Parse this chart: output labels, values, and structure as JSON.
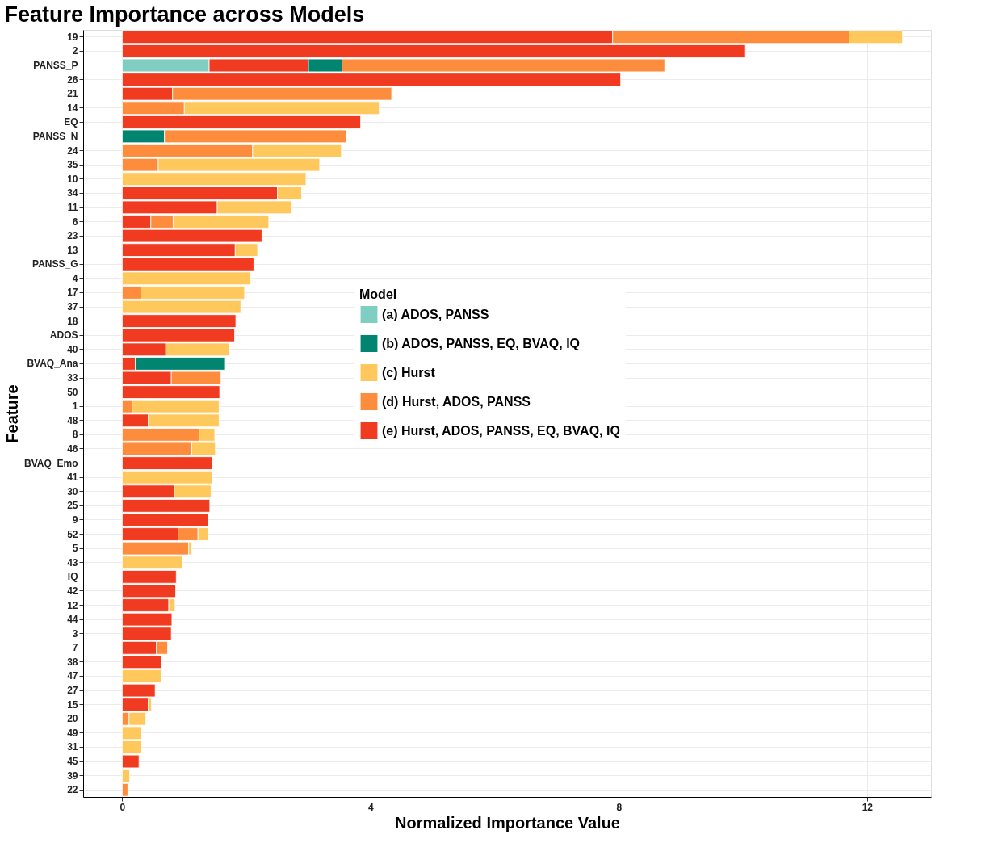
{
  "chart_data": {
    "type": "bar",
    "orientation": "horizontal",
    "stacked": true,
    "title": "Feature Importance across Models",
    "xlabel": "Normalized Importance Value",
    "ylabel": "Feature",
    "legend_title": "Model",
    "legend": "right",
    "grid": true,
    "categories": [
      "19",
      "2",
      "PANSS_P",
      "26",
      "21",
      "14",
      "EQ",
      "PANSS_N",
      "24",
      "35",
      "10",
      "34",
      "11",
      "6",
      "23",
      "13",
      "PANSS_G",
      "4",
      "17",
      "37",
      "18",
      "ADOS",
      "40",
      "BVAQ_Ana",
      "33",
      "50",
      "1",
      "48",
      "8",
      "46",
      "BVAQ_Emo",
      "41",
      "30",
      "25",
      "9",
      "52",
      "5",
      "43",
      "IQ",
      "42",
      "12",
      "44",
      "3",
      "7",
      "38",
      "47",
      "27",
      "15",
      "20",
      "49",
      "31",
      "45",
      "39",
      "22"
    ],
    "xlim": [
      -0.63,
      13.03
    ],
    "xticks": [
      0,
      4,
      8,
      12
    ],
    "series": [
      {
        "name": "(a) ADOS, PANSS",
        "color": "#80cdc1",
        "values": [
          null,
          null,
          1.4,
          null,
          null,
          null,
          null,
          null,
          null,
          null,
          null,
          null,
          null,
          null,
          null,
          null,
          null,
          null,
          null,
          null,
          null,
          null,
          null,
          null,
          null,
          null,
          null,
          null,
          null,
          null,
          null,
          null,
          null,
          null,
          null,
          null,
          null,
          null,
          null,
          null,
          null,
          null,
          null,
          null,
          null,
          null,
          null,
          null,
          null,
          null,
          null,
          null,
          null,
          null
        ]
      },
      {
        "name": "(e) Hurst, ADOS, PANSS, EQ, BVAQ, IQ",
        "color": "#f03b20",
        "values": [
          7.9,
          10.04,
          1.6,
          8.03,
          0.81,
          null,
          3.84,
          null,
          null,
          null,
          null,
          2.5,
          1.53,
          0.46,
          2.25,
          1.82,
          2.12,
          null,
          null,
          null,
          1.83,
          1.81,
          0.7,
          0.21,
          0.79,
          1.57,
          null,
          0.42,
          null,
          null,
          1.45,
          null,
          0.84,
          1.41,
          1.38,
          0.9,
          null,
          null,
          0.87,
          0.86,
          0.75,
          0.8,
          0.79,
          0.55,
          0.63,
          null,
          0.53,
          0.42,
          null,
          null,
          null,
          0.27,
          null,
          null
        ]
      },
      {
        "name": "(b) ADOS, PANSS, EQ, BVAQ, IQ",
        "color": "#018571",
        "values": [
          null,
          null,
          0.54,
          null,
          null,
          null,
          null,
          0.68,
          null,
          null,
          null,
          null,
          null,
          null,
          null,
          null,
          null,
          null,
          null,
          null,
          null,
          null,
          null,
          1.45,
          null,
          null,
          null,
          null,
          null,
          null,
          null,
          null,
          null,
          null,
          null,
          null,
          null,
          null,
          null,
          null,
          null,
          null,
          null,
          null,
          null,
          null,
          null,
          null,
          null,
          null,
          null,
          null,
          null,
          null
        ]
      },
      {
        "name": "(d) Hurst, ADOS, PANSS",
        "color": "#fd8d3c",
        "values": [
          3.81,
          null,
          5.2,
          null,
          3.53,
          1.0,
          null,
          2.93,
          2.1,
          0.58,
          null,
          null,
          null,
          0.36,
          null,
          null,
          null,
          null,
          0.3,
          null,
          null,
          null,
          null,
          null,
          0.8,
          null,
          0.16,
          null,
          1.24,
          1.12,
          null,
          null,
          null,
          null,
          null,
          0.32,
          1.07,
          null,
          null,
          null,
          null,
          null,
          null,
          0.18,
          null,
          null,
          null,
          null,
          0.11,
          null,
          null,
          null,
          null,
          0.09
        ]
      },
      {
        "name": "(c) Hurst",
        "color": "#fec85c",
        "values": [
          0.86,
          null,
          null,
          null,
          null,
          3.14,
          null,
          null,
          1.43,
          2.6,
          2.96,
          0.39,
          1.2,
          1.54,
          null,
          0.36,
          null,
          2.07,
          1.67,
          1.91,
          null,
          null,
          1.02,
          null,
          null,
          null,
          1.4,
          1.14,
          0.25,
          0.38,
          null,
          1.45,
          0.59,
          null,
          null,
          0.16,
          0.05,
          0.97,
          null,
          null,
          0.1,
          null,
          null,
          null,
          null,
          0.63,
          null,
          0.05,
          0.27,
          0.3,
          0.3,
          null,
          0.12,
          null
        ]
      }
    ]
  }
}
